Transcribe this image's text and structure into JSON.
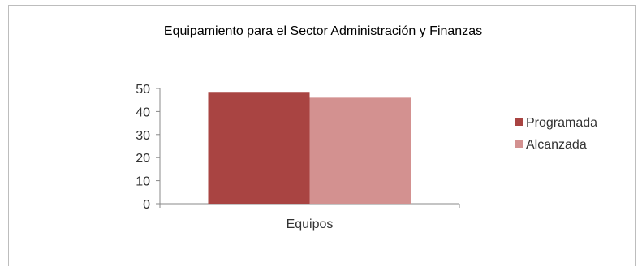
{
  "chart_data": {
    "type": "bar",
    "title": "Equipamiento para el Sector Administración y Finanzas",
    "categories": [
      "Equipos"
    ],
    "series": [
      {
        "name": "Programada",
        "values": [
          48.5
        ],
        "color": "#a94442"
      },
      {
        "name": "Alcanzada",
        "values": [
          46
        ],
        "color": "#d39190"
      }
    ],
    "ylim": [
      0,
      50
    ],
    "yticks": [
      "0",
      "10",
      "20",
      "30",
      "40",
      "50"
    ],
    "grid": false,
    "legend_position": "right"
  }
}
